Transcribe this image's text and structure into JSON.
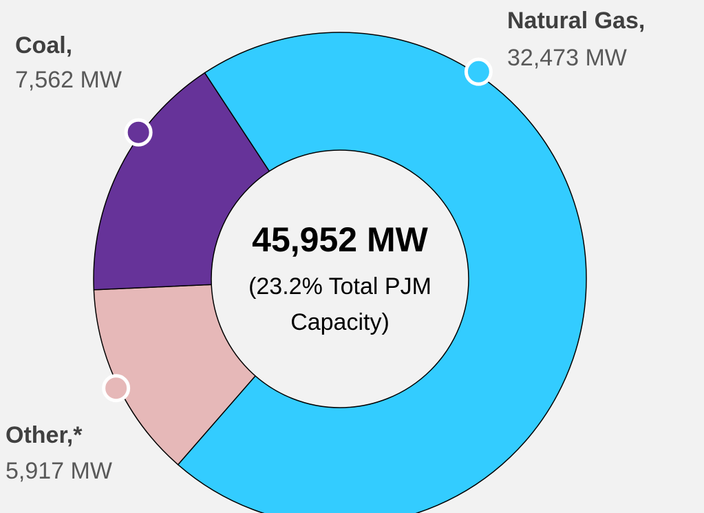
{
  "chart_data": {
    "type": "donut",
    "categories": [
      "Natural Gas,",
      "Other,*",
      "Coal,"
    ],
    "values": [
      32473,
      5917,
      7562
    ],
    "value_labels": [
      "32,473 MW",
      "5,917 MW",
      "7,562 MW"
    ],
    "colors": [
      "#33ccff",
      "#e6b8b8",
      "#663399"
    ],
    "center_title": "45,952 MW",
    "center_subtitle": [
      "(23.2% Total PJM",
      "Capacity)"
    ]
  }
}
